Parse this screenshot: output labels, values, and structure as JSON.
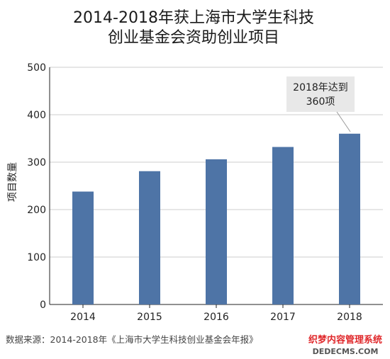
{
  "colors": {
    "bar": "#4e74a6",
    "axis": "#222222",
    "grid": "#cccccc",
    "callout_bg": "#e8e8e8",
    "watermark_red": "#e0282b"
  },
  "chart_data": {
    "type": "bar",
    "title": [
      "2014-2018年获上海市大学生科技",
      "创业基金会资助创业项目"
    ],
    "categories": [
      "2014",
      "2015",
      "2016",
      "2017",
      "2018"
    ],
    "values": [
      238,
      281,
      306,
      332,
      360
    ],
    "ylabel": "项目数量",
    "xlabel": "",
    "ylim": [
      0,
      500
    ],
    "yticks": [
      0,
      100,
      200,
      300,
      400,
      500
    ],
    "grid": true,
    "annotation": {
      "lines": [
        "2018年达到",
        "360项"
      ],
      "target_category": "2018"
    }
  },
  "source_note": "数据来源：2014-2018年《上海市大学生科技创业基金会年报》",
  "watermark": {
    "cn": "织梦内容管理系统",
    "en": "DEDECMS.COM"
  }
}
